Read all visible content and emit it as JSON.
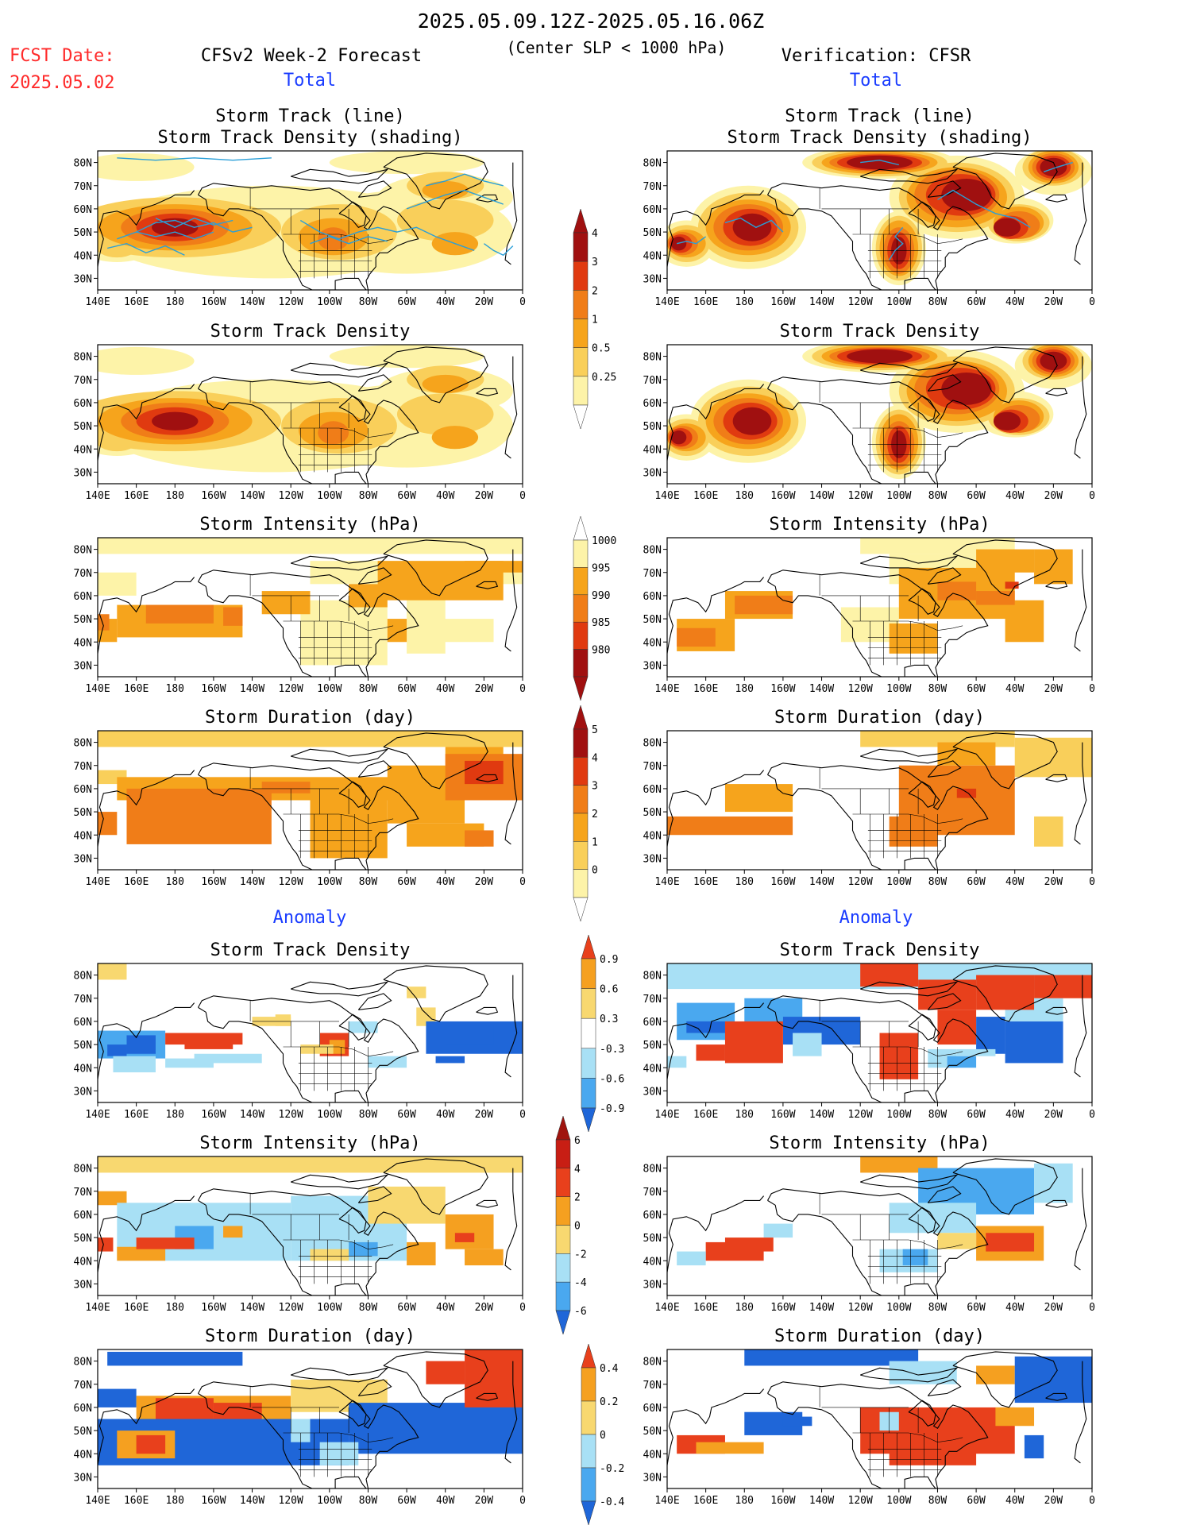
{
  "header": {
    "title_dates": "2025.05.09.12Z-2025.05.16.06Z",
    "subtitle": "(Center SLP < 1000 hPa)",
    "fcst_label": "FCST Date:",
    "fcst_date": "2025.05.02",
    "left_model": "CFSv2 Week-2 Forecast",
    "left_kind": "Total",
    "right_model": "Verification: CFSR",
    "right_kind": "Total",
    "anomaly_left": "Anomaly",
    "anomaly_right": "Anomaly"
  },
  "panel_titles": {
    "track_line": "Storm Track (line)",
    "track_shading": "Storm Track Density (shading)",
    "density": "Storm Track Density",
    "intensity": "Storm Intensity (hPa)",
    "duration": "Storm Duration (day)"
  },
  "axes": {
    "lat_ticks": [
      "80N",
      "70N",
      "60N",
      "50N",
      "40N",
      "30N"
    ],
    "lon_ticks": [
      "140E",
      "160E",
      "180",
      "160W",
      "140W",
      "120W",
      "100W",
      "80W",
      "60W",
      "40W",
      "20W",
      "0"
    ]
  },
  "colorbars": {
    "density": {
      "labels": [
        "4",
        "3",
        "2",
        "1",
        "0.5",
        "0.25"
      ],
      "colors": [
        "#a01010",
        "#e03a10",
        "#f07d18",
        "#f6a41c",
        "#f9cf5a",
        "#fdf3a8"
      ]
    },
    "intensity": {
      "labels": [
        "1000",
        "995",
        "990",
        "985",
        "980"
      ],
      "colors": [
        "#fdf3a8",
        "#f6a41c",
        "#f07d18",
        "#e03a10",
        "#a01010"
      ]
    },
    "duration": {
      "labels": [
        "5",
        "4",
        "3",
        "2",
        "1",
        "0"
      ],
      "colors": [
        "#a01010",
        "#e03a10",
        "#f07d18",
        "#f6a41c",
        "#f9cf5a",
        "#fdf3a8"
      ]
    },
    "anom_density": {
      "labels": [
        "0.9",
        "0.6",
        "0.3",
        "-0.3",
        "-0.6",
        "-0.9"
      ],
      "colors": [
        "#e8401c",
        "#f5a020",
        "#f8d870",
        "#ffffff",
        "#a8e0f5",
        "#4aa8ef",
        "#1f66d8"
      ]
    },
    "anom_intensity": {
      "labels": [
        "6",
        "4",
        "2",
        "0",
        "-2",
        "-4",
        "-6"
      ],
      "colors": [
        "#c81e14",
        "#e8401c",
        "#f5a020",
        "#f8d870",
        "#a8e0f5",
        "#4aa8ef",
        "#1f66d8"
      ]
    },
    "anom_duration": {
      "labels": [
        "0.4",
        "0.2",
        "0",
        "-0.2",
        "-0.4"
      ],
      "colors": [
        "#e8401c",
        "#f5a020",
        "#f8d870",
        "#a8e0f5",
        "#4aa8ef",
        "#1f66d8"
      ]
    }
  },
  "chart_data": [
    {
      "type": "heatmap",
      "panel": "forecast-total-track",
      "title": "Storm Track (line) / Storm Track Density (shading)",
      "xlim": [
        "140E",
        "0"
      ],
      "ylim": [
        "25N",
        "85N"
      ],
      "features": [
        {
          "name": "",
          "lon": 180,
          "lat": 52,
          "level": 4
        },
        {
          "name": "",
          "lon": 260,
          "lat": 48,
          "level": 2
        },
        {
          "name": "",
          "lon": 320,
          "lat": 55,
          "level": 1
        },
        {
          "name": "",
          "lon": 320,
          "lat": 68,
          "level": 1
        }
      ]
    },
    {
      "type": "heatmap",
      "panel": "verification-total-track",
      "title": "Storm Track (line) / Storm Track Density (shading)",
      "xlim": [
        "140E",
        "0"
      ],
      "ylim": [
        "25N",
        "85N"
      ],
      "features": [
        {
          "name": "",
          "lon": 182,
          "lat": 52,
          "level": 4
        },
        {
          "name": "",
          "lon": 150,
          "lat": 45,
          "level": 4
        },
        {
          "name": "",
          "lon": 260,
          "lat": 43,
          "level": 4
        },
        {
          "name": "",
          "lon": 290,
          "lat": 65,
          "level": 4
        },
        {
          "name": "",
          "lon": 250,
          "lat": 80,
          "level": 4
        },
        {
          "name": "",
          "lon": 340,
          "lat": 78,
          "level": 4
        }
      ]
    },
    {
      "type": "heatmap",
      "panel": "forecast-density",
      "title": "Storm Track Density",
      "features": [
        {
          "name": "",
          "lon": 180,
          "lat": 52,
          "level": 4
        },
        {
          "name": "",
          "lon": 260,
          "lat": 48,
          "level": 2
        }
      ]
    },
    {
      "type": "heatmap",
      "panel": "verification-density",
      "title": "Storm Track Density",
      "features": [
        {
          "name": "",
          "lon": 182,
          "lat": 52,
          "level": 4
        },
        {
          "name": "",
          "lon": 260,
          "lat": 43,
          "level": 4
        },
        {
          "name": "",
          "lon": 290,
          "lat": 65,
          "level": 4
        }
      ]
    },
    {
      "type": "heatmap",
      "panel": "forecast-intensity",
      "title": "Storm Intensity (hPa)",
      "range": [
        980,
        1000
      ]
    },
    {
      "type": "heatmap",
      "panel": "verification-intensity",
      "title": "Storm Intensity (hPa)",
      "range": [
        980,
        1000
      ]
    },
    {
      "type": "heatmap",
      "panel": "forecast-duration",
      "title": "Storm Duration (day)",
      "range": [
        0,
        5
      ]
    },
    {
      "type": "heatmap",
      "panel": "verification-duration",
      "title": "Storm Duration (day)",
      "range": [
        0,
        5
      ]
    },
    {
      "type": "heatmap",
      "panel": "forecast-anom-density",
      "title": "Storm Track Density",
      "range": [
        -0.9,
        0.9
      ]
    },
    {
      "type": "heatmap",
      "panel": "verification-anom-density",
      "title": "Storm Track Density",
      "range": [
        -0.9,
        0.9
      ]
    },
    {
      "type": "heatmap",
      "panel": "forecast-anom-intensity",
      "title": "Storm Intensity (hPa)",
      "range": [
        -6,
        6
      ]
    },
    {
      "type": "heatmap",
      "panel": "verification-anom-intensity",
      "title": "Storm Intensity (hPa)",
      "range": [
        -6,
        6
      ]
    },
    {
      "type": "heatmap",
      "panel": "forecast-anom-duration",
      "title": "Storm Duration (day)",
      "range": [
        -0.4,
        0.4
      ]
    },
    {
      "type": "heatmap",
      "panel": "verification-anom-duration",
      "title": "Storm Duration (day)",
      "range": [
        -0.4,
        0.4
      ]
    }
  ]
}
